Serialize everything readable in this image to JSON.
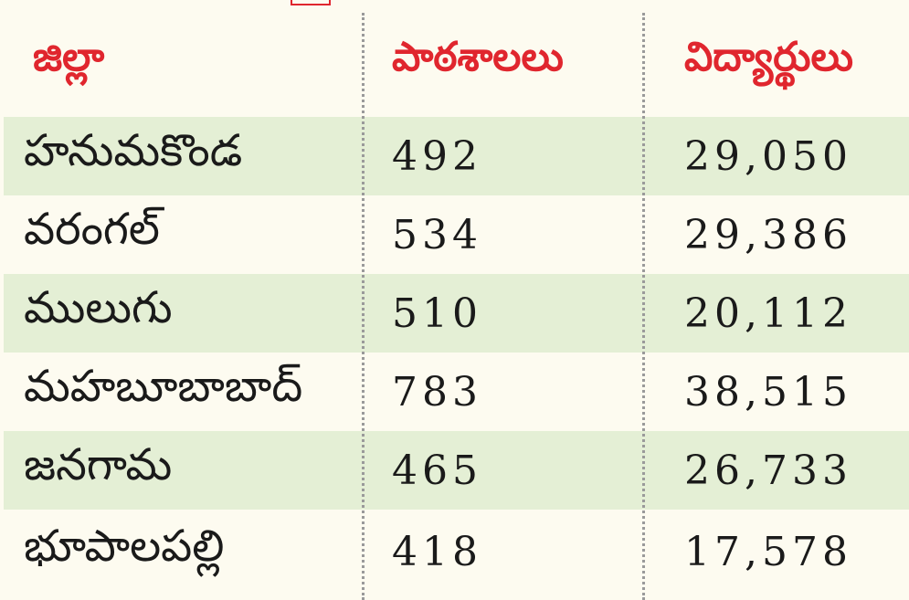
{
  "header": {
    "district": "జిల్లా",
    "schools": "పాఠశాలలు",
    "students": "విద్యార్థులు"
  },
  "rows": [
    {
      "district": "హనుమకొండ",
      "schools": "492",
      "students": "29,050"
    },
    {
      "district": "వరంగల్",
      "schools": "534",
      "students": "29,386"
    },
    {
      "district": "ములుగు",
      "schools": "510",
      "students": "20,112"
    },
    {
      "district": "మహబూబాబాద్",
      "schools": "783",
      "students": "38,515"
    },
    {
      "district": "జనగామ",
      "schools": "465",
      "students": "26,733"
    },
    {
      "district": "భూపాలపల్లి",
      "schools": "418",
      "students": "17,578"
    }
  ],
  "colors": {
    "header_text": "#e0262e",
    "shaded_row": "#e4efd5",
    "background": "#fdfbf0"
  }
}
